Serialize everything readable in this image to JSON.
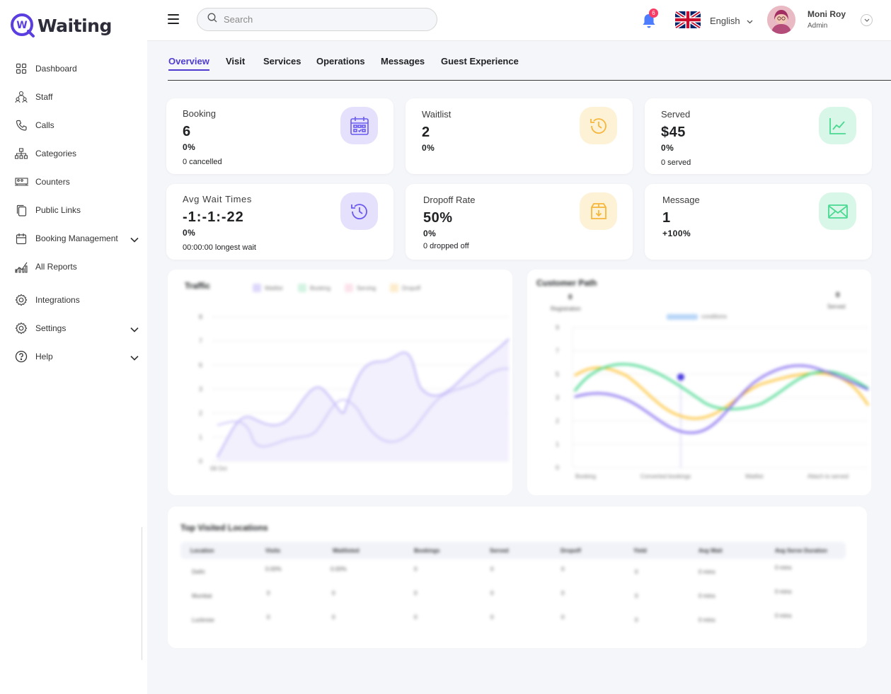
{
  "app": {
    "logo_letter": "W",
    "logo_text": "Waiting"
  },
  "sidebar": {
    "items": [
      {
        "label": "Dashboard",
        "icon": "grid-icon"
      },
      {
        "label": "Staff",
        "icon": "people-icon"
      },
      {
        "label": "Calls",
        "icon": "phone-icon"
      },
      {
        "label": "Categories",
        "icon": "hierarchy-icon"
      },
      {
        "label": "Counters",
        "icon": "counter-icon"
      },
      {
        "label": "Public Links",
        "icon": "copy-icon"
      },
      {
        "label": "Booking Management",
        "icon": "calendar-icon",
        "expandable": true
      },
      {
        "label": "All Reports",
        "icon": "reports-icon"
      },
      {
        "label": "Integrations",
        "icon": "gear-icon"
      },
      {
        "label": "Settings",
        "icon": "gear-icon",
        "expandable": true
      },
      {
        "label": "Help",
        "icon": "help-icon",
        "expandable": true
      }
    ]
  },
  "topbar": {
    "search_placeholder": "Search",
    "notifications_count": "6",
    "language": "English",
    "user_name": "Moni Roy",
    "user_role": "Admin"
  },
  "tabs": [
    {
      "label": "Overview",
      "active": true
    },
    {
      "label": "Visit"
    },
    {
      "label": "Services"
    },
    {
      "label": "Operations"
    },
    {
      "label": "Messages"
    },
    {
      "label": "Guest Experience"
    }
  ],
  "cards": {
    "booking": {
      "title": "Booking",
      "value": "6",
      "pct": "0%",
      "sub": "0 cancelled",
      "icon": "calendar-icon"
    },
    "waitlist": {
      "title": "Waitlist",
      "value": "2",
      "pct": "0%",
      "icon": "history-icon"
    },
    "served": {
      "title": "Served",
      "value": "$45",
      "pct": "0%",
      "sub": "0 served",
      "icon": "trend-icon"
    },
    "avg_wait": {
      "title": "Avg Wait Times",
      "value": "-1:-1:-22",
      "pct": "0%",
      "sub": "00:00:00 longest wait",
      "icon": "history-icon"
    },
    "dropoff": {
      "title": "Dropoff Rate",
      "value": "50%",
      "pct": "0%",
      "sub": "0 dropped off",
      "icon": "box-icon"
    },
    "message": {
      "title": "Message",
      "value": "1",
      "pct": "+100%",
      "icon": "mail-icon"
    }
  },
  "colors": {
    "accent": "#4f3ccf",
    "purple_soft": "#e5e0fb",
    "yellow_soft": "#fef2d6",
    "green_soft": "#d9f7e8",
    "purple": "#8280ff",
    "yellow": "#fec53d",
    "green": "#4ad991"
  },
  "traffic": {
    "title": "Traffic",
    "legend": [
      "Waitlist",
      "Booking",
      "Serving",
      "Dropoff"
    ],
    "y_ticks": [
      "8",
      "7",
      "6",
      "3",
      "2",
      "1",
      "0"
    ],
    "x_tick": "09 Oct"
  },
  "customer_path": {
    "title": "Customer Path",
    "left_stat": {
      "value": "0",
      "label": "Registration"
    },
    "right_stat": {
      "value": "0",
      "label": "Served"
    },
    "legend": "conditions",
    "y_ticks": [
      "9",
      "7",
      "5",
      "3",
      "2",
      "1",
      "0"
    ],
    "x_ticks": [
      "Booking",
      "Converted bookings",
      "Waitlist",
      "Attach to served"
    ]
  },
  "top_locations": {
    "title": "Top Visited Locations",
    "columns": [
      "Location",
      "Visits",
      "Waitlisted",
      "Bookings",
      "Served",
      "Dropoff",
      "Yield",
      "Avg Wait",
      "Avg Serve Duration"
    ],
    "rows": [
      [
        "Delhi",
        "0.00%",
        "0.00%",
        "0",
        "0",
        "0",
        "0",
        "0 mins",
        "0 mins"
      ],
      [
        "Mumbai",
        "0",
        "0",
        "0",
        "0",
        "0",
        "0",
        "0 mins",
        "0 mins"
      ],
      [
        "Lucknow",
        "0",
        "0",
        "0",
        "0",
        "0",
        "0",
        "0 mins",
        "0 mins"
      ]
    ]
  }
}
